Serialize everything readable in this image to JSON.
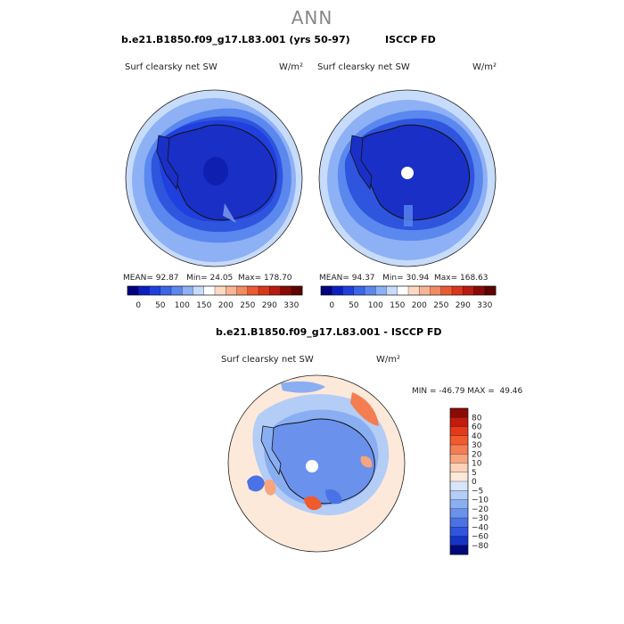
{
  "chart_data": [
    {
      "type": "heatmap",
      "title": "b.e21.B1850.f09_g17.L83.001 (yrs 50-97)",
      "subtitle": "Surf clearsky net SW",
      "units": "W/m²",
      "projection": "south polar stereographic",
      "stats": {
        "mean": "92.87",
        "min": "24.05",
        "max": "178.70",
        "mean_label": "MEAN=",
        "min_label": "Min=",
        "max_label": "Max="
      }
    },
    {
      "type": "heatmap",
      "title": "ISCCP FD",
      "subtitle": "Surf clearsky net SW",
      "units": "W/m²",
      "projection": "south polar stereographic",
      "stats": {
        "mean": "94.37",
        "min": "30.94",
        "max": "168.63",
        "mean_label": "MEAN=",
        "min_label": "Min=",
        "max_label": "Max="
      }
    },
    {
      "type": "heatmap",
      "title": "b.e21.B1850.f09_g17.L83.001 - ISCCP FD",
      "subtitle": "Surf clearsky net SW",
      "units": "W/m²",
      "projection": "south polar stereographic",
      "stats_text": "MIN = -46.79 MAX =  49.46"
    }
  ],
  "suptitle": "ANN",
  "colorbar_abs": {
    "labels": [
      "0",
      "50",
      "100",
      "150",
      "200",
      "250",
      "290",
      "330"
    ],
    "colors": [
      "#000080",
      "#0a1fbf",
      "#1f3fdf",
      "#3a66e8",
      "#5a88ef",
      "#8eb0f5",
      "#c7dbfb",
      "#ffffff",
      "#fdd9c4",
      "#f7b596",
      "#f28a62",
      "#ea5a30",
      "#d9361b",
      "#b81b10",
      "#8a0a06",
      "#5e0000"
    ]
  },
  "colorbar_diff": {
    "labels": [
      "80",
      "60",
      "40",
      "30",
      "20",
      "10",
      "5",
      "0",
      "−5",
      "−10",
      "−20",
      "−30",
      "−40",
      "−60",
      "−80"
    ],
    "colors": [
      "#8a0a06",
      "#c21c0e",
      "#e43a1a",
      "#f05a2c",
      "#f47e52",
      "#f7a47f",
      "#fbd2b8",
      "#fde9da",
      "#d7e6fb",
      "#b3cdf7",
      "#8aaef2",
      "#6a91ec",
      "#4a72e6",
      "#2f55df",
      "#1534c4",
      "#00087a"
    ]
  },
  "colors": {
    "dark_blue": "#0f1fb0",
    "mid_blue": "#2f55df",
    "light_blue": "#8eb0f5",
    "pale_blue": "#c7dbfb",
    "pale_orange": "#fde9da"
  }
}
